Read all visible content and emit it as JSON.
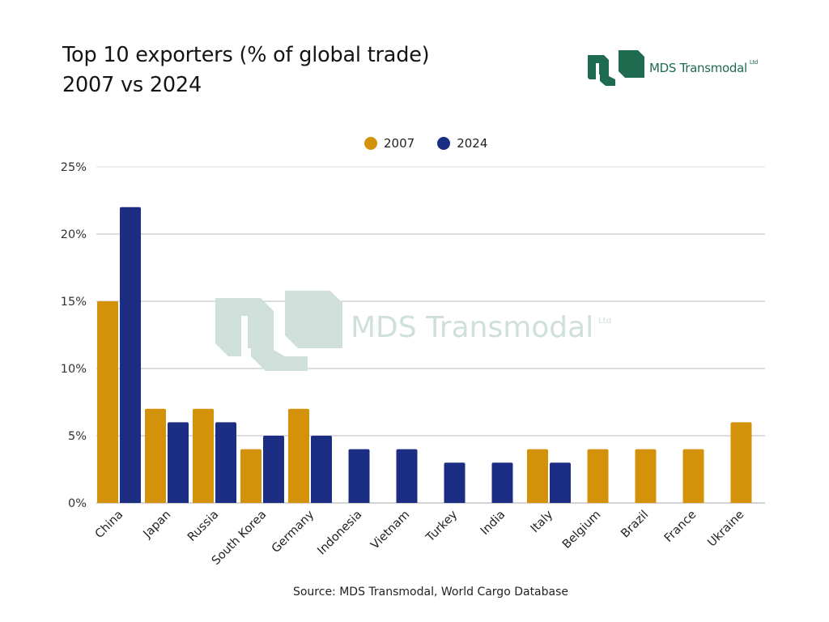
{
  "header": {
    "title_line1": "Top 10 exporters (% of global trade)",
    "title_line2": "2007 vs 2024"
  },
  "brand": {
    "name": "MDS Transmodal",
    "suffix": "Ltd",
    "color": "#1e6b50",
    "watermark_color": "#cfe0db"
  },
  "footer": {
    "source": "Source: MDS Transmodal, World Cargo Database"
  },
  "chart_data": {
    "type": "bar",
    "title": "Top 10 exporters (% of global trade) 2007 vs 2024",
    "xlabel": "",
    "ylabel": "",
    "ylim": [
      0,
      25
    ],
    "yticks": [
      0,
      5,
      10,
      15,
      20,
      25
    ],
    "ytick_labels": [
      "0%",
      "5%",
      "10%",
      "15%",
      "20%",
      "25%"
    ],
    "grid": true,
    "legend_position": "top-center",
    "categories": [
      "China",
      "Japan",
      "Russia",
      "South Korea",
      "Germany",
      "Indonesia",
      "Vietnam",
      "Turkey",
      "India",
      "Italy",
      "Belgium",
      "Brazil",
      "France",
      "Ukraine"
    ],
    "series": [
      {
        "name": "2007",
        "color": "#d4910a",
        "values": [
          15,
          7,
          7,
          4,
          7,
          null,
          null,
          null,
          null,
          4,
          4,
          4,
          4,
          6
        ]
      },
      {
        "name": "2024",
        "color": "#1c2d84",
        "values": [
          22,
          6,
          6,
          5,
          5,
          4,
          4,
          3,
          3,
          3,
          null,
          null,
          null,
          null
        ]
      }
    ]
  }
}
